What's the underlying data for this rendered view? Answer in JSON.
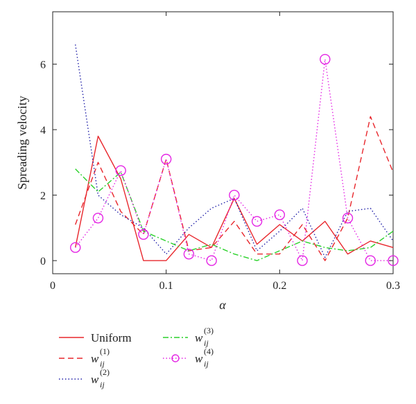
{
  "chart_data": {
    "type": "line",
    "xlabel": "α",
    "ylabel": "Spreading velocity",
    "xlim": [
      0,
      0.3
    ],
    "ylim": [
      -0.4,
      7.6
    ],
    "xticks": [
      0,
      0.1,
      0.2,
      0.3
    ],
    "xtick_labels": [
      "0",
      "0.1",
      "0.2",
      "0.3"
    ],
    "yticks": [
      0,
      2,
      4,
      6
    ],
    "ytick_labels": [
      "0",
      "2",
      "4",
      "6"
    ],
    "grid": false,
    "legend_position": "below plot",
    "series": [
      {
        "name": "Uniform",
        "legend_base": "Uniform",
        "legend_sup": "",
        "color": "#e8262c",
        "dash": "",
        "marker": "",
        "x": [
          0.02,
          0.04,
          0.06,
          0.08,
          0.1,
          0.12,
          0.14,
          0.16,
          0.18,
          0.2,
          0.22,
          0.24,
          0.26,
          0.28,
          0.3
        ],
        "y": [
          0.4,
          3.8,
          2.5,
          0.0,
          0.0,
          0.8,
          0.4,
          1.9,
          0.5,
          1.1,
          0.6,
          1.2,
          0.2,
          0.6,
          0.4
        ]
      },
      {
        "name": "w_ij^(1)",
        "legend_base": "w",
        "legend_sub": "ij",
        "legend_sup": "(1)",
        "color": "#e8262c",
        "dash": "8,5",
        "marker": "",
        "x": [
          0.02,
          0.04,
          0.06,
          0.08,
          0.1,
          0.12,
          0.14,
          0.16,
          0.18,
          0.2,
          0.22,
          0.24,
          0.26,
          0.28,
          0.3
        ],
        "y": [
          1.1,
          3.0,
          1.5,
          0.8,
          3.1,
          0.3,
          0.4,
          1.2,
          0.2,
          0.2,
          1.1,
          0.0,
          1.3,
          4.4,
          2.7
        ]
      },
      {
        "name": "w_ij^(2)",
        "legend_base": "w",
        "legend_sub": "ij",
        "legend_sup": "(2)",
        "color": "#1f1fa8",
        "dash": "1.5,3",
        "marker": "",
        "x": [
          0.02,
          0.04,
          0.06,
          0.08,
          0.1,
          0.12,
          0.14,
          0.16,
          0.18,
          0.2,
          0.22,
          0.24,
          0.26,
          0.28,
          0.3
        ],
        "y": [
          6.6,
          2.0,
          1.4,
          1.0,
          0.2,
          1.0,
          1.6,
          1.9,
          0.3,
          0.9,
          1.6,
          0.1,
          1.5,
          1.6,
          0.6
        ]
      },
      {
        "name": "w_ij^(3)",
        "legend_base": "w",
        "legend_sub": "ij",
        "legend_sup": "(3)",
        "color": "#2ad12a",
        "dash": "8,3,2,3",
        "marker": "",
        "x": [
          0.02,
          0.04,
          0.06,
          0.08,
          0.1,
          0.12,
          0.14,
          0.16,
          0.18,
          0.2,
          0.22,
          0.24,
          0.26,
          0.28,
          0.3
        ],
        "y": [
          2.8,
          2.1,
          2.7,
          0.9,
          0.6,
          0.3,
          0.5,
          0.2,
          0.0,
          0.3,
          0.6,
          0.4,
          0.3,
          0.4,
          0.9
        ]
      },
      {
        "name": "w_ij^(4)",
        "legend_base": "w",
        "legend_sub": "ij",
        "legend_sup": "(4)",
        "color": "#e424e4",
        "dash": "1.5,3",
        "marker": "circle",
        "x": [
          0.02,
          0.04,
          0.06,
          0.08,
          0.1,
          0.12,
          0.14,
          0.16,
          0.18,
          0.2,
          0.22,
          0.24,
          0.26,
          0.28,
          0.3
        ],
        "y": [
          0.4,
          1.3,
          2.75,
          0.8,
          3.1,
          0.2,
          0.0,
          2.0,
          1.2,
          1.4,
          0.0,
          6.15,
          1.3,
          0.0,
          0.0
        ]
      }
    ]
  }
}
